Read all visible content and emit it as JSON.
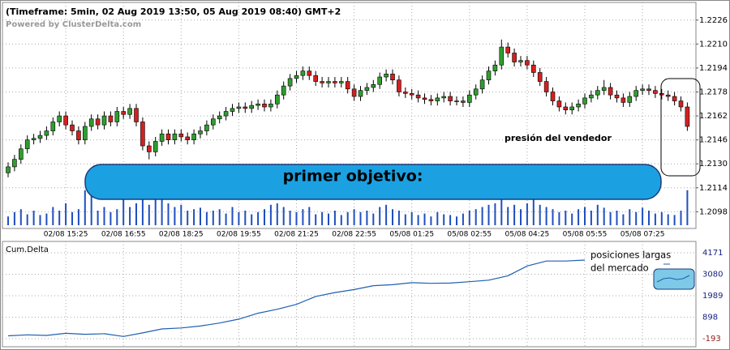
{
  "chart_data": {
    "type": "candlestick",
    "title": "(Timeframe: 5min, 02 Aug 2019 13:50, 05 Aug 2019 08:40) GMT+2",
    "subtitle": "Powered by ClusterDelta.com",
    "up_color": "#2e9e2e",
    "down_color": "#d42020",
    "volume_color": "#1f4fbf",
    "xlim": [
      0,
      106
    ],
    "xticks": [
      {
        "value": 9,
        "label": "02/08 15:25"
      },
      {
        "value": 18,
        "label": "02/08 16:55"
      },
      {
        "value": 27,
        "label": "02/08 18:25"
      },
      {
        "value": 36,
        "label": "02/08 19:55"
      },
      {
        "value": 45,
        "label": "02/08 21:25"
      },
      {
        "value": 54,
        "label": "02/08 22:55"
      },
      {
        "value": 63,
        "label": "05/08 01:25"
      },
      {
        "value": 72,
        "label": "05/08 02:55"
      },
      {
        "value": 81,
        "label": "05/08 04:25"
      },
      {
        "value": 90,
        "label": "05/08 05:55"
      },
      {
        "value": 99,
        "label": "05/08 07:25"
      }
    ],
    "ylim": [
      1.2089,
      1.2234
    ],
    "yticks": [
      1.2226,
      {
        "value": 1.221,
        "label": "1.2210"
      },
      1.2194,
      1.2178,
      1.2162,
      1.2146,
      {
        "value": 1.213,
        "label": "1.2130"
      },
      1.2114,
      1.2098
    ],
    "grid": true,
    "candles": [
      [
        1.2124,
        1.2131,
        1.2121,
        1.2128
      ],
      [
        1.2128,
        1.2136,
        1.2125,
        1.2133
      ],
      [
        1.2133,
        1.2143,
        1.213,
        1.214
      ],
      [
        1.214,
        1.2149,
        1.2137,
        1.2146
      ],
      [
        1.2146,
        1.215,
        1.2143,
        1.2147
      ],
      [
        1.2147,
        1.2152,
        1.2144,
        1.2149
      ],
      [
        1.2149,
        1.2155,
        1.2146,
        1.2152
      ],
      [
        1.2152,
        1.2161,
        1.2149,
        1.2158
      ],
      [
        1.2158,
        1.2165,
        1.2155,
        1.2162
      ],
      [
        1.2162,
        1.2165,
        1.2153,
        1.2156
      ],
      [
        1.2156,
        1.2159,
        1.2149,
        1.2152
      ],
      [
        1.2152,
        1.2155,
        1.2143,
        1.2146
      ],
      [
        1.2146,
        1.2158,
        1.2143,
        1.2155
      ],
      [
        1.2155,
        1.2163,
        1.2152,
        1.216
      ],
      [
        1.216,
        1.2163,
        1.2153,
        1.2156
      ],
      [
        1.2156,
        1.2165,
        1.2153,
        1.2162
      ],
      [
        1.2162,
        1.2165,
        1.2155,
        1.2158
      ],
      [
        1.2158,
        1.2168,
        1.2155,
        1.2165
      ],
      [
        1.2165,
        1.2168,
        1.216,
        1.2163
      ],
      [
        1.2163,
        1.217,
        1.216,
        1.2167
      ],
      [
        1.2167,
        1.217,
        1.2155,
        1.2158
      ],
      [
        1.2158,
        1.2161,
        1.2139,
        1.2142
      ],
      [
        1.2142,
        1.2145,
        1.2133,
        1.2138
      ],
      [
        1.2138,
        1.2148,
        1.2135,
        1.2145
      ],
      [
        1.2145,
        1.2153,
        1.2142,
        1.215
      ],
      [
        1.215,
        1.2153,
        1.2143,
        1.2146
      ],
      [
        1.2146,
        1.2153,
        1.2143,
        1.215
      ],
      [
        1.215,
        1.2153,
        1.2145,
        1.2148
      ],
      [
        1.2148,
        1.2151,
        1.2143,
        1.2146
      ],
      [
        1.2146,
        1.2153,
        1.2143,
        1.215
      ],
      [
        1.215,
        1.2155,
        1.2147,
        1.2152
      ],
      [
        1.2152,
        1.2159,
        1.2149,
        1.2156
      ],
      [
        1.2156,
        1.2163,
        1.2153,
        1.216
      ],
      [
        1.216,
        1.2165,
        1.2157,
        1.2162
      ],
      [
        1.2162,
        1.2168,
        1.2159,
        1.2165
      ],
      [
        1.2165,
        1.217,
        1.2162,
        1.2167
      ],
      [
        1.2167,
        1.2171,
        1.2164,
        1.2168
      ],
      [
        1.2168,
        1.2171,
        1.2164,
        1.2167
      ],
      [
        1.2167,
        1.2172,
        1.2164,
        1.2169
      ],
      [
        1.2169,
        1.2173,
        1.2166,
        1.217
      ],
      [
        1.217,
        1.2173,
        1.2165,
        1.2168
      ],
      [
        1.2168,
        1.2173,
        1.2165,
        1.217
      ],
      [
        1.217,
        1.2179,
        1.2167,
        1.2176
      ],
      [
        1.2176,
        1.2185,
        1.2173,
        1.2182
      ],
      [
        1.2182,
        1.219,
        1.2179,
        1.2187
      ],
      [
        1.2187,
        1.2192,
        1.2184,
        1.2189
      ],
      [
        1.2189,
        1.2195,
        1.2186,
        1.2192
      ],
      [
        1.2192,
        1.2195,
        1.2186,
        1.2189
      ],
      [
        1.2189,
        1.2192,
        1.2182,
        1.2185
      ],
      [
        1.2185,
        1.2188,
        1.2181,
        1.2184
      ],
      [
        1.2184,
        1.2188,
        1.2181,
        1.2185
      ],
      [
        1.2185,
        1.2188,
        1.2181,
        1.2184
      ],
      [
        1.2184,
        1.2188,
        1.2181,
        1.2185
      ],
      [
        1.2185,
        1.2188,
        1.2177,
        1.218
      ],
      [
        1.218,
        1.2183,
        1.2172,
        1.2175
      ],
      [
        1.2175,
        1.2182,
        1.2172,
        1.2179
      ],
      [
        1.2179,
        1.2184,
        1.2176,
        1.2181
      ],
      [
        1.2181,
        1.2186,
        1.2178,
        1.2183
      ],
      [
        1.2183,
        1.2191,
        1.218,
        1.2188
      ],
      [
        1.2188,
        1.2193,
        1.2185,
        1.219
      ],
      [
        1.219,
        1.2193,
        1.2183,
        1.2186
      ],
      [
        1.2186,
        1.2189,
        1.2175,
        1.2178
      ],
      [
        1.2178,
        1.2181,
        1.2174,
        1.2177
      ],
      [
        1.2177,
        1.218,
        1.2173,
        1.2176
      ],
      [
        1.2176,
        1.2179,
        1.2171,
        1.2174
      ],
      [
        1.2174,
        1.2177,
        1.217,
        1.2173
      ],
      [
        1.2173,
        1.2176,
        1.2169,
        1.2172
      ],
      [
        1.2172,
        1.2177,
        1.2169,
        1.2174
      ],
      [
        1.2174,
        1.2178,
        1.2171,
        1.2175
      ],
      [
        1.2175,
        1.2178,
        1.2169,
        1.2172
      ],
      [
        1.2172,
        1.2175,
        1.2169,
        1.2172
      ],
      [
        1.2172,
        1.2175,
        1.2168,
        1.2171
      ],
      [
        1.2171,
        1.2179,
        1.2168,
        1.2176
      ],
      [
        1.2176,
        1.2183,
        1.2173,
        1.218
      ],
      [
        1.218,
        1.2189,
        1.2177,
        1.2186
      ],
      [
        1.2186,
        1.2195,
        1.2183,
        1.2192
      ],
      [
        1.2192,
        1.2199,
        1.2189,
        1.2196
      ],
      [
        1.2196,
        1.2213,
        1.2193,
        1.2208
      ],
      [
        1.2208,
        1.2211,
        1.2201,
        1.2204
      ],
      [
        1.2204,
        1.2207,
        1.2195,
        1.2198
      ],
      [
        1.2198,
        1.2202,
        1.2195,
        1.2199
      ],
      [
        1.2199,
        1.2202,
        1.2193,
        1.2196
      ],
      [
        1.2196,
        1.2199,
        1.2188,
        1.2191
      ],
      [
        1.2191,
        1.2194,
        1.2182,
        1.2185
      ],
      [
        1.2185,
        1.2188,
        1.2175,
        1.2178
      ],
      [
        1.2178,
        1.2181,
        1.2169,
        1.2172
      ],
      [
        1.2172,
        1.2175,
        1.2165,
        1.2168
      ],
      [
        1.2168,
        1.2171,
        1.2163,
        1.2166
      ],
      [
        1.2166,
        1.2171,
        1.2163,
        1.2168
      ],
      [
        1.2168,
        1.2173,
        1.2165,
        1.217
      ],
      [
        1.217,
        1.2177,
        1.2167,
        1.2174
      ],
      [
        1.2174,
        1.2179,
        1.2171,
        1.2176
      ],
      [
        1.2176,
        1.2182,
        1.2173,
        1.2179
      ],
      [
        1.2179,
        1.2186,
        1.2176,
        1.2181
      ],
      [
        1.2181,
        1.2184,
        1.2173,
        1.2176
      ],
      [
        1.2176,
        1.2179,
        1.2171,
        1.2174
      ],
      [
        1.2174,
        1.2177,
        1.2168,
        1.2171
      ],
      [
        1.2171,
        1.2178,
        1.2168,
        1.2175
      ],
      [
        1.2175,
        1.2182,
        1.2172,
        1.2179
      ],
      [
        1.2179,
        1.2183,
        1.2176,
        1.218
      ],
      [
        1.218,
        1.2183,
        1.2176,
        1.2179
      ],
      [
        1.2179,
        1.2182,
        1.2174,
        1.2177
      ],
      [
        1.2177,
        1.218,
        1.2173,
        1.2176
      ],
      [
        1.2176,
        1.2179,
        1.2172,
        1.2175
      ],
      [
        1.2175,
        1.2178,
        1.2169,
        1.2172
      ],
      [
        1.2172,
        1.2175,
        1.2165,
        1.2168
      ],
      [
        1.2168,
        1.2171,
        1.2152,
        1.2155
      ]
    ],
    "vlim": [
      0,
      100
    ],
    "volume": [
      12,
      18,
      22,
      15,
      20,
      14,
      16,
      25,
      20,
      30,
      18,
      22,
      48,
      52,
      20,
      25,
      18,
      22,
      40,
      25,
      30,
      38,
      28,
      35,
      62,
      30,
      25,
      28,
      20,
      22,
      24,
      18,
      20,
      22,
      16,
      25,
      18,
      20,
      15,
      18,
      22,
      28,
      30,
      25,
      20,
      18,
      22,
      25,
      15,
      18,
      16,
      20,
      14,
      18,
      22,
      18,
      20,
      16,
      25,
      28,
      22,
      20,
      15,
      18,
      14,
      16,
      12,
      18,
      15,
      14,
      12,
      16,
      20,
      22,
      25,
      28,
      30,
      35,
      25,
      28,
      22,
      30,
      60,
      28,
      25,
      22,
      18,
      20,
      16,
      22,
      25,
      20,
      28,
      24,
      18,
      20,
      15,
      22,
      18,
      24,
      20,
      16,
      18,
      15,
      14,
      20,
      48
    ],
    "delta": {
      "name": "Cum.Delta",
      "color": "#1f5fb0",
      "ylim": [
        -481,
        4665
      ],
      "yticks": [
        4171,
        3080,
        1989,
        898,
        -193
      ],
      "x": [
        0,
        3,
        6,
        9,
        12,
        15,
        18,
        21,
        24,
        27,
        30,
        33,
        36,
        39,
        42,
        45,
        48,
        51,
        54,
        57,
        60,
        63,
        66,
        69,
        72,
        75,
        78,
        81,
        84,
        87,
        90
      ],
      "values": [
        -50,
        0,
        -30,
        80,
        30,
        60,
        -80,
        100,
        300,
        350,
        450,
        600,
        800,
        1100,
        1300,
        1550,
        1950,
        2150,
        2300,
        2500,
        2550,
        2650,
        2620,
        2630,
        2700,
        2780,
        3000,
        3500,
        3750,
        3750,
        3800
      ]
    },
    "annotations": [
      "primer objetivo:",
      "presión del vendedor",
      "posiciones largas",
      "del mercado"
    ]
  }
}
